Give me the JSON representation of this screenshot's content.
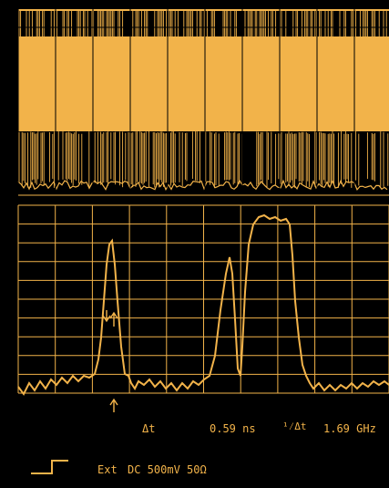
{
  "measurement": {
    "delta_label": "Δt",
    "delta_value": "0.59 ns",
    "recip_label": "¹⁄Δt",
    "recip_value": "1.69 GHz"
  },
  "trigger": {
    "source": "Ext",
    "settings": "DC 500mV 50Ω"
  },
  "colors": {
    "trace": "#f2b34a",
    "grid": "#f2b34a",
    "background": "#000000"
  },
  "icons": {
    "marker_up": "arrow-up-icon",
    "marker_down": "arrow-down-icon",
    "edge": "rising-edge-icon"
  }
}
